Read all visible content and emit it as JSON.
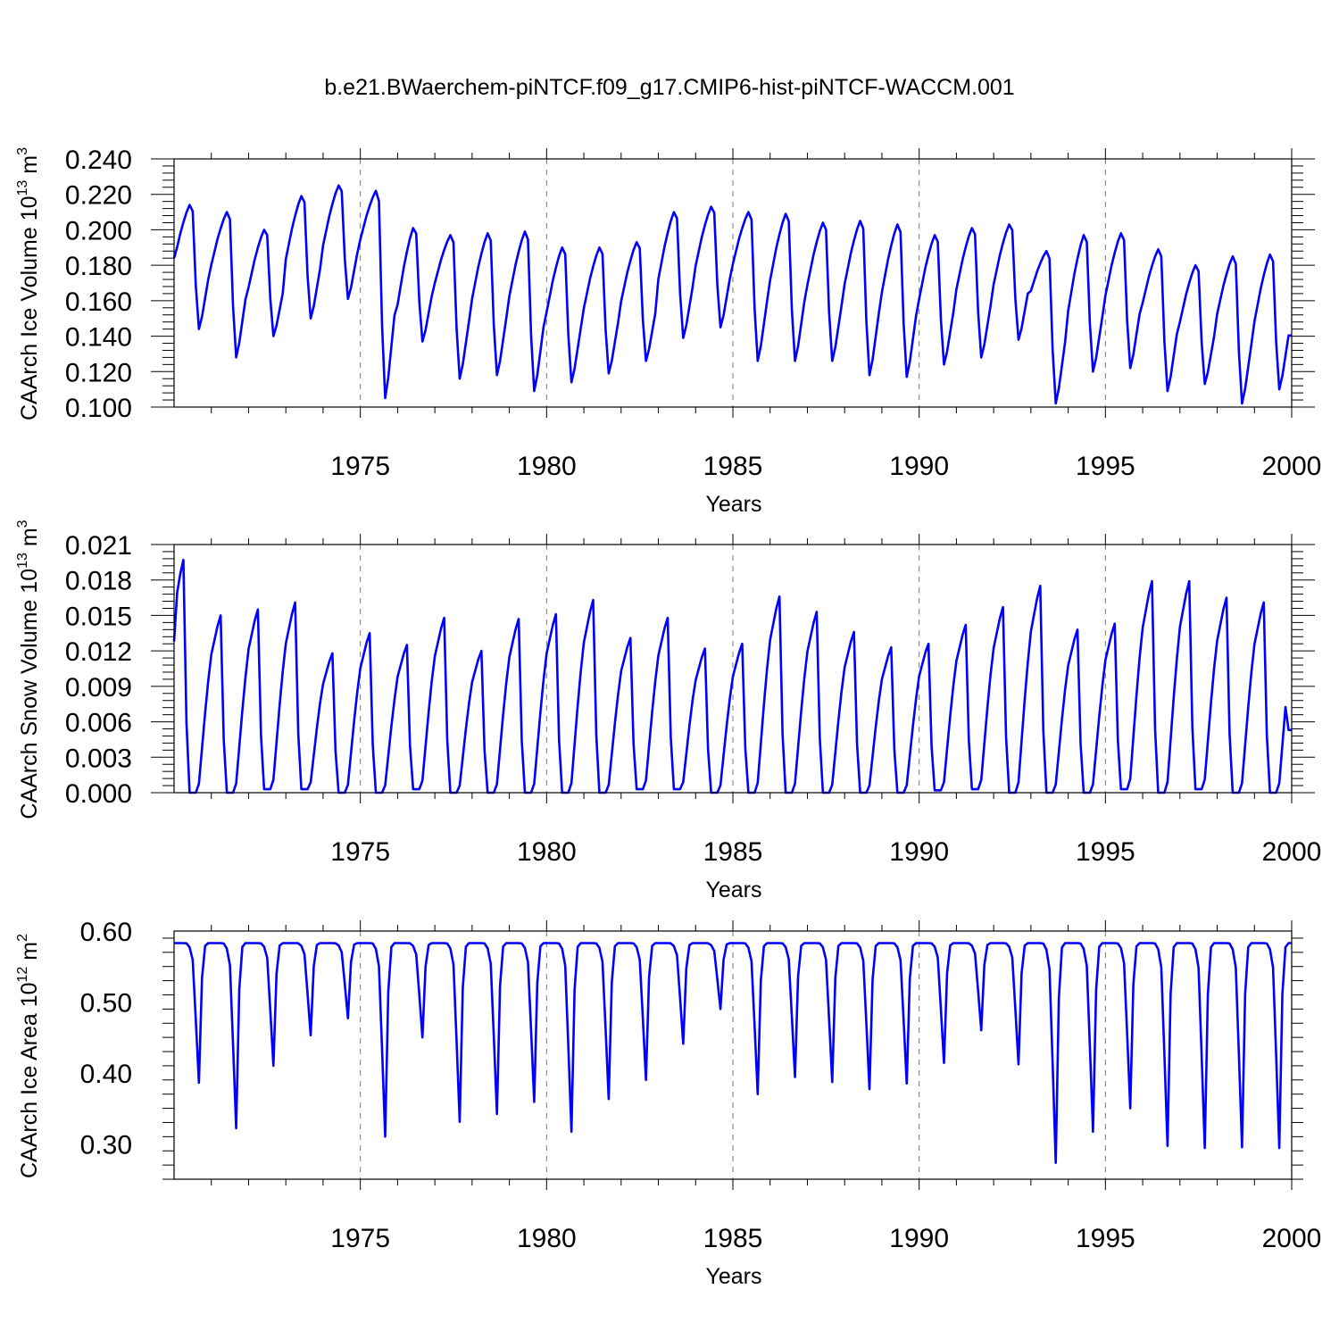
{
  "title": "b.e21.BWaerchem-piNTCF.f09_g17.CMIP6-hist-piNTCF-WACCM.001",
  "chart_data": [
    {
      "type": "line",
      "ylabel": "CAArch Ice Volume 10",
      "ylabel_exp": "13",
      "ylabel_unit": " m",
      "ylabel_unit_exp": "3",
      "xlabel": "Years",
      "xlim": [
        1970.0,
        2000.0
      ],
      "ylim": [
        0.1,
        0.24
      ],
      "xticks": [
        "1975",
        "1980",
        "1985",
        "1990",
        "1995",
        "2000"
      ],
      "yticks": [
        "0.240",
        "0.220",
        "0.200",
        "0.180",
        "0.160",
        "0.140",
        "0.120",
        "0.100"
      ],
      "grid_x": true,
      "color": "#0000ff",
      "min": [
        0.144,
        0.128,
        0.14,
        0.15,
        0.161,
        0.105,
        0.137,
        0.116,
        0.118,
        0.109,
        0.114,
        0.119,
        0.126,
        0.139,
        0.145,
        0.126,
        0.126,
        0.126,
        0.118,
        0.117,
        0.124,
        0.128,
        0.138,
        0.102,
        0.12,
        0.122,
        0.109,
        0.113,
        0.102,
        0.11
      ],
      "max": [
        0.214,
        0.21,
        0.2,
        0.219,
        0.225,
        0.222,
        0.201,
        0.197,
        0.198,
        0.199,
        0.19,
        0.19,
        0.193,
        0.21,
        0.213,
        0.21,
        0.209,
        0.204,
        0.205,
        0.203,
        0.197,
        0.201,
        0.203,
        0.188,
        0.197,
        0.198,
        0.189,
        0.18,
        0.185,
        0.186
      ],
      "phase": "ice_volume"
    },
    {
      "type": "line",
      "ylabel": "CAArch Snow Volume 10",
      "ylabel_exp": "13",
      "ylabel_unit": " m",
      "ylabel_unit_exp": "3",
      "xlabel": "Years",
      "xlim": [
        1970.0,
        2000.0
      ],
      "ylim": [
        0.0,
        0.021
      ],
      "xticks": [
        "1975",
        "1980",
        "1985",
        "1990",
        "1995",
        "2000"
      ],
      "yticks": [
        "0.021",
        "0.018",
        "0.015",
        "0.012",
        "0.009",
        "0.006",
        "0.003",
        "0.000"
      ],
      "grid_x": true,
      "color": "#0000ff",
      "min": [
        0.0,
        0.0,
        0.0003,
        0.0003,
        0.0,
        0.0,
        0.0003,
        0.0,
        0.0,
        0.0,
        0.0,
        0.0,
        0.0003,
        0.0003,
        0.0,
        0.0,
        0.0,
        0.0,
        0.0,
        0.0,
        0.0002,
        0.0003,
        0.0,
        0.0,
        0.0,
        0.0003,
        0.0,
        0.0003,
        0.0,
        0.0
      ],
      "max": [
        0.0197,
        0.015,
        0.0155,
        0.0161,
        0.0118,
        0.0135,
        0.0125,
        0.0148,
        0.012,
        0.0147,
        0.0151,
        0.0163,
        0.0131,
        0.0148,
        0.0122,
        0.0126,
        0.0166,
        0.0153,
        0.0136,
        0.0123,
        0.0126,
        0.0142,
        0.0157,
        0.0175,
        0.0138,
        0.0143,
        0.0179,
        0.0179,
        0.0165,
        0.0161
      ],
      "start": 0.0128,
      "end": 0.0053,
      "phase": "snow_volume"
    },
    {
      "type": "line",
      "ylabel": "CAArch Ice Area 10",
      "ylabel_exp": "12",
      "ylabel_unit": " m",
      "ylabel_unit_exp": "2",
      "xlabel": "Years",
      "xlim": [
        1970.0,
        2000.0
      ],
      "ylim": [
        0.25,
        0.6
      ],
      "xticks": [
        "1975",
        "1980",
        "1985",
        "1990",
        "1995",
        "2000"
      ],
      "yticks": [
        "0.60",
        "0.50",
        "0.40",
        "0.30"
      ],
      "grid_x": true,
      "color": "#0000ff",
      "plateau": 0.583,
      "min": [
        0.386,
        0.322,
        0.41,
        0.453,
        0.477,
        0.31,
        0.45,
        0.331,
        0.342,
        0.359,
        0.317,
        0.363,
        0.39,
        0.441,
        0.49,
        0.37,
        0.394,
        0.387,
        0.377,
        0.385,
        0.414,
        0.46,
        0.412,
        0.273,
        0.317,
        0.35,
        0.297,
        0.294,
        0.295,
        0.294
      ],
      "phase": "ice_area"
    }
  ]
}
